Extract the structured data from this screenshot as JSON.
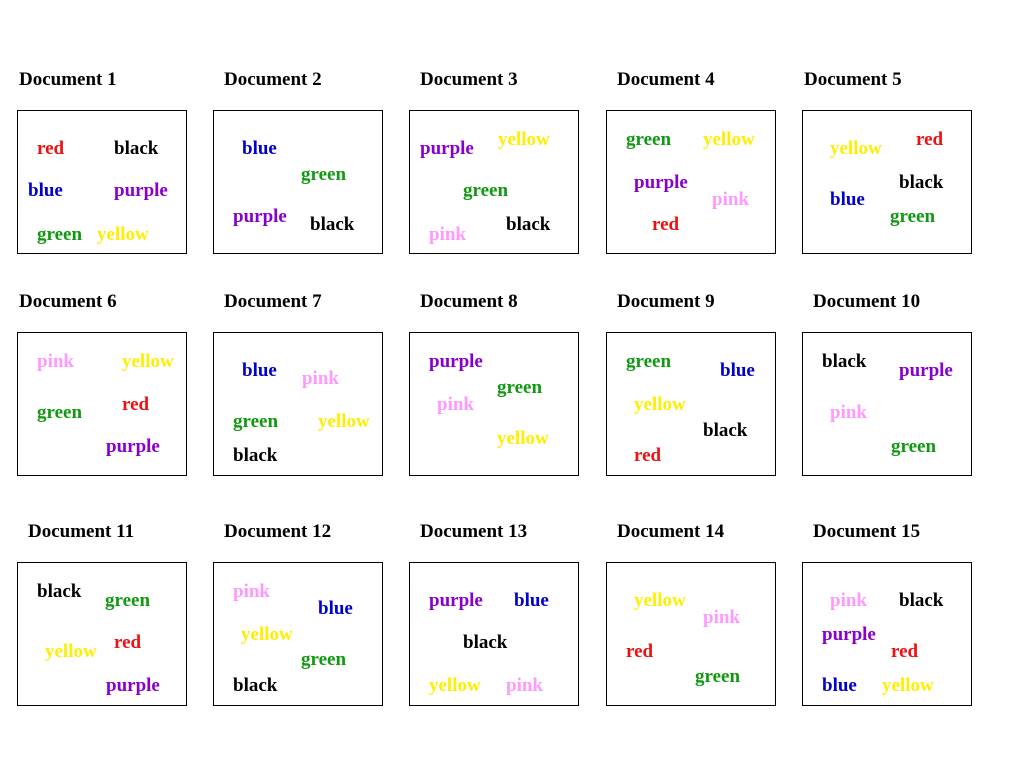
{
  "colors": {
    "red": "#ee1111",
    "black": "#000000",
    "blue": "#0000cc",
    "purple": "#8800cc",
    "green": "#119911",
    "yellow": "#ffee00",
    "pink": "#ff99ff"
  },
  "documents": [
    {
      "title": "Document 1",
      "words": [
        "red",
        "black",
        "blue",
        "purple",
        "green",
        "yellow"
      ]
    },
    {
      "title": "Document 2",
      "words": [
        "blue",
        "green",
        "purple",
        "black"
      ]
    },
    {
      "title": "Document 3",
      "words": [
        "yellow",
        "purple",
        "green",
        "pink",
        "black"
      ]
    },
    {
      "title": "Document 4",
      "words": [
        "green",
        "yellow",
        "purple",
        "pink",
        "red"
      ]
    },
    {
      "title": "Document 5",
      "words": [
        "red",
        "yellow",
        "black",
        "blue",
        "green"
      ]
    },
    {
      "title": "Document 6",
      "words": [
        "pink",
        "yellow",
        "red",
        "green",
        "purple"
      ]
    },
    {
      "title": "Document 7",
      "words": [
        "blue",
        "pink",
        "green",
        "yellow",
        "black"
      ]
    },
    {
      "title": "Document 8",
      "words": [
        "purple",
        "green",
        "pink",
        "yellow"
      ]
    },
    {
      "title": "Document 9",
      "words": [
        "green",
        "blue",
        "yellow",
        "black",
        "red"
      ]
    },
    {
      "title": "Document 10",
      "words": [
        "black",
        "purple",
        "pink",
        "green"
      ]
    },
    {
      "title": "Document 11",
      "words": [
        "black",
        "green",
        "red",
        "yellow",
        "purple"
      ]
    },
    {
      "title": "Document 12",
      "words": [
        "pink",
        "blue",
        "yellow",
        "green",
        "black"
      ]
    },
    {
      "title": "Document 13",
      "words": [
        "purple",
        "blue",
        "black",
        "yellow",
        "pink"
      ]
    },
    {
      "title": "Document 14",
      "words": [
        "yellow",
        "pink",
        "red",
        "green"
      ]
    },
    {
      "title": "Document 15",
      "words": [
        "pink",
        "black",
        "purple",
        "red",
        "blue",
        "yellow"
      ]
    }
  ]
}
